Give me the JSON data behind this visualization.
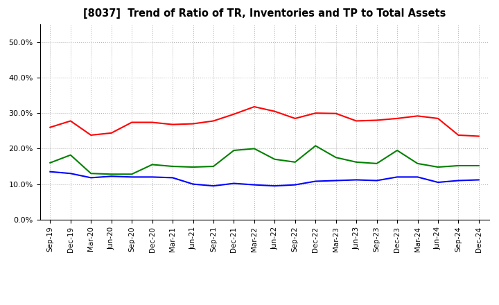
{
  "title": "[8037]  Trend of Ratio of TR, Inventories and TP to Total Assets",
  "x_labels": [
    "Sep-19",
    "Dec-19",
    "Mar-20",
    "Jun-20",
    "Sep-20",
    "Dec-20",
    "Mar-21",
    "Jun-21",
    "Sep-21",
    "Dec-21",
    "Mar-22",
    "Jun-22",
    "Sep-22",
    "Dec-22",
    "Mar-23",
    "Jun-23",
    "Sep-23",
    "Dec-23",
    "Mar-24",
    "Jun-24",
    "Sep-24",
    "Dec-24"
  ],
  "trade_receivables": [
    0.26,
    0.278,
    0.238,
    0.244,
    0.274,
    0.274,
    0.268,
    0.27,
    0.278,
    0.297,
    0.318,
    0.305,
    0.285,
    0.3,
    0.299,
    0.278,
    0.28,
    0.285,
    0.292,
    0.285,
    0.238,
    0.235
  ],
  "inventories": [
    0.135,
    0.13,
    0.118,
    0.122,
    0.12,
    0.12,
    0.118,
    0.1,
    0.095,
    0.102,
    0.098,
    0.095,
    0.098,
    0.108,
    0.11,
    0.112,
    0.11,
    0.12,
    0.12,
    0.105,
    0.11,
    0.112
  ],
  "trade_payables": [
    0.16,
    0.182,
    0.13,
    0.128,
    0.128,
    0.155,
    0.15,
    0.148,
    0.15,
    0.195,
    0.2,
    0.17,
    0.162,
    0.208,
    0.175,
    0.162,
    0.158,
    0.195,
    0.158,
    0.148,
    0.152,
    0.152
  ],
  "tr_color": "#ff0000",
  "inv_color": "#0000ff",
  "tp_color": "#008000",
  "ylim": [
    0.0,
    0.55
  ],
  "yticks": [
    0.0,
    0.1,
    0.2,
    0.3,
    0.4,
    0.5
  ],
  "background_color": "#ffffff",
  "grid_color": "#aaaaaa"
}
